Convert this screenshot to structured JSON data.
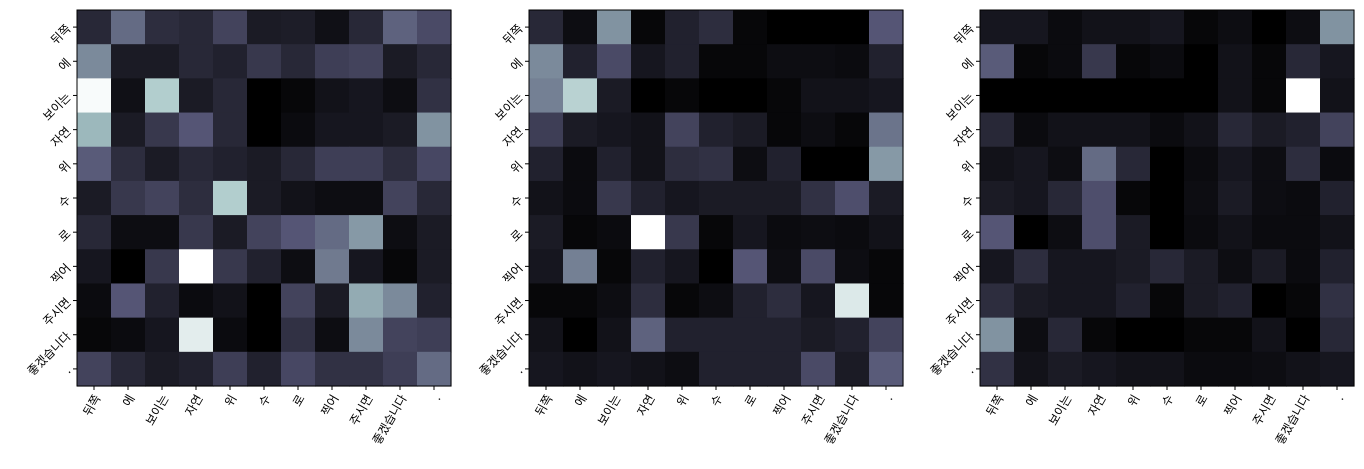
{
  "chart_data": [
    {
      "type": "heatmap",
      "title": "",
      "xlabel": "",
      "ylabel": "",
      "colormap": "bone",
      "x_tick_labels": [
        "뒤쪽",
        "에",
        "보이는",
        "자연",
        "위",
        "수",
        "로",
        "찍어",
        "주시면",
        "좋겠습니다",
        "."
      ],
      "y_tick_labels": [
        "뒤쪽",
        "에",
        "보이는",
        "자연",
        "위",
        "수",
        "로",
        "찍어",
        "주시면",
        "좋겠습니다",
        "."
      ],
      "values": [
        [
          0.18,
          0.45,
          0.2,
          0.18,
          0.3,
          0.12,
          0.13,
          0.07,
          0.18,
          0.42,
          0.33
        ],
        [
          0.55,
          0.12,
          0.12,
          0.18,
          0.15,
          0.25,
          0.18,
          0.28,
          0.3,
          0.12,
          0.18
        ],
        [
          0.98,
          0.07,
          0.78,
          0.12,
          0.18,
          0.0,
          0.03,
          0.08,
          0.1,
          0.06,
          0.22
        ],
        [
          0.7,
          0.12,
          0.25,
          0.38,
          0.18,
          0.0,
          0.05,
          0.1,
          0.1,
          0.12,
          0.58
        ],
        [
          0.4,
          0.2,
          0.12,
          0.18,
          0.15,
          0.12,
          0.18,
          0.28,
          0.28,
          0.2,
          0.32
        ],
        [
          0.12,
          0.25,
          0.3,
          0.2,
          0.78,
          0.12,
          0.08,
          0.06,
          0.06,
          0.3,
          0.18
        ],
        [
          0.18,
          0.06,
          0.06,
          0.25,
          0.12,
          0.3,
          0.38,
          0.45,
          0.6,
          0.06,
          0.12
        ],
        [
          0.1,
          0.0,
          0.25,
          1.0,
          0.25,
          0.15,
          0.06,
          0.5,
          0.1,
          0.03,
          0.12
        ],
        [
          0.05,
          0.38,
          0.15,
          0.05,
          0.08,
          0.0,
          0.3,
          0.12,
          0.66,
          0.55,
          0.15
        ],
        [
          0.03,
          0.05,
          0.1,
          0.92,
          0.05,
          0.0,
          0.22,
          0.06,
          0.55,
          0.3,
          0.28
        ],
        [
          0.3,
          0.18,
          0.12,
          0.15,
          0.28,
          0.15,
          0.32,
          0.22,
          0.22,
          0.28,
          0.45
        ]
      ]
    },
    {
      "type": "heatmap",
      "title": "",
      "xlabel": "",
      "ylabel": "",
      "colormap": "bone",
      "x_tick_labels": [
        "뒤쪽",
        "에",
        "보이는",
        "자연",
        "위",
        "수",
        "로",
        "찍어",
        "주시면",
        "좋겠습니다",
        "."
      ],
      "y_tick_labels": [
        "뒤쪽",
        "에",
        "보이는",
        "자연",
        "위",
        "수",
        "로",
        "찍어",
        "주시면",
        "좋겠습니다",
        "."
      ],
      "values": [
        [
          0.18,
          0.06,
          0.58,
          0.03,
          0.15,
          0.2,
          0.03,
          0.0,
          0.0,
          0.0,
          0.38
        ],
        [
          0.55,
          0.15,
          0.33,
          0.1,
          0.15,
          0.03,
          0.03,
          0.06,
          0.06,
          0.05,
          0.15
        ],
        [
          0.52,
          0.8,
          0.12,
          0.0,
          0.03,
          0.0,
          0.0,
          0.03,
          0.08,
          0.08,
          0.1
        ],
        [
          0.28,
          0.12,
          0.1,
          0.08,
          0.3,
          0.15,
          0.12,
          0.03,
          0.06,
          0.03,
          0.48
        ],
        [
          0.15,
          0.05,
          0.15,
          0.08,
          0.2,
          0.22,
          0.06,
          0.15,
          0.0,
          0.0,
          0.6
        ],
        [
          0.08,
          0.05,
          0.25,
          0.15,
          0.1,
          0.12,
          0.12,
          0.12,
          0.22,
          0.35,
          0.12
        ],
        [
          0.12,
          0.03,
          0.05,
          1.0,
          0.25,
          0.03,
          0.1,
          0.05,
          0.06,
          0.05,
          0.08
        ],
        [
          0.1,
          0.52,
          0.03,
          0.15,
          0.1,
          0.0,
          0.38,
          0.06,
          0.33,
          0.06,
          0.03
        ],
        [
          0.03,
          0.03,
          0.06,
          0.2,
          0.03,
          0.06,
          0.15,
          0.2,
          0.1,
          0.9,
          0.03
        ],
        [
          0.08,
          0.0,
          0.08,
          0.42,
          0.15,
          0.15,
          0.15,
          0.15,
          0.12,
          0.15,
          0.3
        ],
        [
          0.1,
          0.08,
          0.1,
          0.08,
          0.06,
          0.15,
          0.15,
          0.15,
          0.33,
          0.12,
          0.4
        ]
      ]
    },
    {
      "type": "heatmap",
      "title": "",
      "xlabel": "",
      "ylabel": "",
      "colormap": "bone",
      "x_tick_labels": [
        "뒤쪽",
        "에",
        "보이는",
        "자연",
        "위",
        "수",
        "로",
        "찍어",
        "주시면",
        "좋겠습니다",
        "."
      ],
      "y_tick_labels": [
        "뒤쪽",
        "에",
        "보이는",
        "자연",
        "위",
        "수",
        "로",
        "찍어",
        "주시면",
        "좋겠습니다",
        "."
      ],
      "values": [
        [
          0.1,
          0.1,
          0.05,
          0.08,
          0.08,
          0.1,
          0.03,
          0.06,
          0.0,
          0.06,
          0.58
        ],
        [
          0.4,
          0.03,
          0.05,
          0.25,
          0.03,
          0.05,
          0.0,
          0.08,
          0.03,
          0.18,
          0.1
        ],
        [
          0.0,
          0.0,
          0.0,
          0.0,
          0.0,
          0.0,
          0.0,
          0.08,
          0.03,
          1.0,
          0.08
        ],
        [
          0.18,
          0.05,
          0.08,
          0.08,
          0.08,
          0.05,
          0.08,
          0.18,
          0.12,
          0.15,
          0.3
        ],
        [
          0.08,
          0.1,
          0.06,
          0.45,
          0.18,
          0.0,
          0.05,
          0.1,
          0.06,
          0.2,
          0.05
        ],
        [
          0.12,
          0.1,
          0.18,
          0.35,
          0.03,
          0.0,
          0.06,
          0.12,
          0.06,
          0.05,
          0.15
        ],
        [
          0.38,
          0.0,
          0.06,
          0.35,
          0.12,
          0.0,
          0.05,
          0.08,
          0.05,
          0.05,
          0.08
        ],
        [
          0.1,
          0.2,
          0.1,
          0.1,
          0.12,
          0.18,
          0.12,
          0.06,
          0.12,
          0.05,
          0.15
        ],
        [
          0.2,
          0.12,
          0.1,
          0.1,
          0.15,
          0.03,
          0.12,
          0.15,
          0.0,
          0.03,
          0.22
        ],
        [
          0.58,
          0.06,
          0.18,
          0.03,
          0.0,
          0.0,
          0.03,
          0.03,
          0.08,
          0.0,
          0.18
        ],
        [
          0.22,
          0.08,
          0.12,
          0.1,
          0.08,
          0.08,
          0.05,
          0.05,
          0.06,
          0.08,
          0.1
        ]
      ]
    }
  ]
}
